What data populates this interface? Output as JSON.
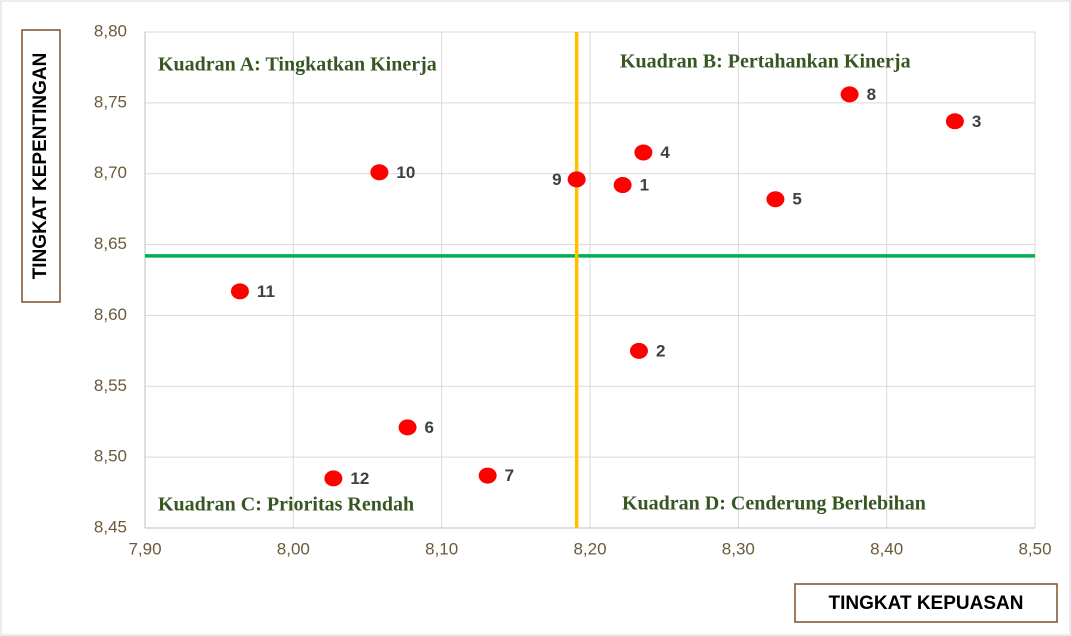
{
  "chart_data": {
    "type": "scatter",
    "x_label": "TINGKAT KEPUASAN",
    "y_label": "TINGKAT KEPENTINGAN",
    "annotations": [
      "Kuadran A: Tingkatkan Kinerja",
      "Kuadran B: Pertahankan  Kinerja",
      "Kuadran C: Prioritas Rendah",
      "Kuadran D: Cenderung  Berlebihan"
    ],
    "point_labels": [
      "1",
      "2",
      "3",
      "4",
      "5",
      "6",
      "7",
      "8",
      "9",
      "10",
      "11",
      "12"
    ],
    "x": [
      8.222,
      8.233,
      8.446,
      8.236,
      8.325,
      8.077,
      8.131,
      8.375,
      8.191,
      8.058,
      7.964,
      8.027
    ],
    "values": [
      8.692,
      8.575,
      8.737,
      8.715,
      8.682,
      8.521,
      8.487,
      8.756,
      8.696,
      8.701,
      8.617,
      8.485
    ],
    "color": "#ff0000",
    "reference_lines": {
      "x": 8.191,
      "x_color": "#ffc000",
      "y": 8.642,
      "y_color": "#00b050"
    },
    "xlim": [
      7.9,
      8.5
    ],
    "ylim": [
      8.45,
      8.8
    ],
    "xticks": [
      {
        "value": 7.9,
        "label": "7,90"
      },
      {
        "value": 8.0,
        "label": "8,00"
      },
      {
        "value": 8.1,
        "label": "8,10"
      },
      {
        "value": 8.2,
        "label": "8,20"
      },
      {
        "value": 8.3,
        "label": "8,30"
      },
      {
        "value": 8.4,
        "label": "8,40"
      },
      {
        "value": 8.5,
        "label": "8,50"
      }
    ],
    "yticks": [
      {
        "value": 8.45,
        "label": "8,45"
      },
      {
        "value": 8.5,
        "label": "8,50"
      },
      {
        "value": 8.55,
        "label": "8,55"
      },
      {
        "value": 8.6,
        "label": "8,60"
      },
      {
        "value": 8.65,
        "label": "8,65"
      },
      {
        "value": 8.7,
        "label": "8,70"
      },
      {
        "value": 8.75,
        "label": "8,75"
      },
      {
        "value": 8.8,
        "label": "8,80"
      }
    ],
    "grid": true
  }
}
